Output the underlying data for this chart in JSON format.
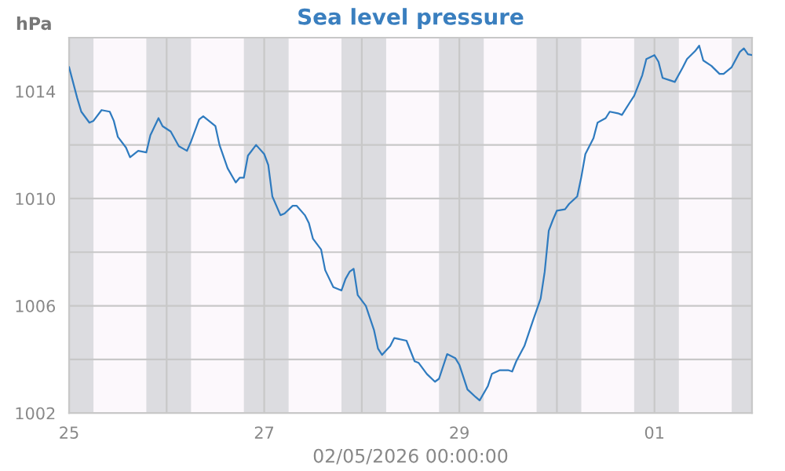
{
  "chart_data": {
    "type": "line",
    "title": "Sea level pressure",
    "ylabel": "hPa",
    "xlabel": "02/05/2026 00:00:00",
    "x": [
      "2026-04-25T00:00",
      "2026-04-25T02:00",
      "2026-04-25T03:00",
      "2026-04-25T05:00",
      "2026-04-25T06:00",
      "2026-04-25T08:00",
      "2026-04-25T10:00",
      "2026-04-25T11:00",
      "2026-04-25T12:00",
      "2026-04-25T14:00",
      "2026-04-25T15:00",
      "2026-04-25T17:00",
      "2026-04-25T19:00",
      "2026-04-25T20:00",
      "2026-04-25T22:00",
      "2026-04-25T23:00",
      "2026-04-26T01:00",
      "2026-04-26T03:00",
      "2026-04-26T05:00",
      "2026-04-26T06:00",
      "2026-04-26T08:00",
      "2026-04-26T09:00",
      "2026-04-26T12:00",
      "2026-04-26T13:00",
      "2026-04-26T15:00",
      "2026-04-26T17:00",
      "2026-04-26T18:00",
      "2026-04-26T19:00",
      "2026-04-26T20:00",
      "2026-04-26T22:00",
      "2026-04-27T00:00",
      "2026-04-27T01:00",
      "2026-04-27T02:00",
      "2026-04-27T04:00",
      "2026-04-27T05:00",
      "2026-04-27T07:00",
      "2026-04-27T08:00",
      "2026-04-27T10:00",
      "2026-04-27T11:00",
      "2026-04-27T12:00",
      "2026-04-27T14:00",
      "2026-04-27T15:00",
      "2026-04-27T17:00",
      "2026-04-27T19:00",
      "2026-04-27T20:00",
      "2026-04-27T21:00",
      "2026-04-27T22:00",
      "2026-04-27T23:00",
      "2026-04-28T01:00",
      "2026-04-28T03:00",
      "2026-04-28T04:00",
      "2026-04-28T05:00",
      "2026-04-28T07:00",
      "2026-04-28T08:00",
      "2026-04-28T11:00",
      "2026-04-28T13:00",
      "2026-04-28T14:00",
      "2026-04-28T16:00",
      "2026-04-28T18:00",
      "2026-04-28T19:00",
      "2026-04-28T21:00",
      "2026-04-28T23:00",
      "2026-04-29T00:00",
      "2026-04-29T02:00",
      "2026-04-29T04:00",
      "2026-04-29T05:00",
      "2026-04-29T07:00",
      "2026-04-29T08:00",
      "2026-04-29T10:00",
      "2026-04-29T12:00",
      "2026-04-29T13:00",
      "2026-04-29T14:00",
      "2026-04-29T16:00",
      "2026-04-29T18:00",
      "2026-04-29T20:00",
      "2026-04-29T21:00",
      "2026-04-29T22:00",
      "2026-04-29T23:00",
      "2026-04-30T00:00",
      "2026-04-30T02:00",
      "2026-04-30T03:00",
      "2026-04-30T05:00",
      "2026-04-30T06:00",
      "2026-04-30T07:00",
      "2026-04-30T09:00",
      "2026-04-30T10:00",
      "2026-04-30T12:00",
      "2026-04-30T13:00",
      "2026-04-30T15:00",
      "2026-04-30T16:00",
      "2026-04-30T18:00",
      "2026-04-30T19:00",
      "2026-04-30T21:00",
      "2026-04-30T22:00",
      "2026-05-01T00:00",
      "2026-05-01T01:00",
      "2026-05-01T02:00",
      "2026-05-01T04:00",
      "2026-05-01T05:00",
      "2026-05-01T07:00",
      "2026-05-01T08:00",
      "2026-05-01T10:00",
      "2026-05-01T11:00",
      "2026-05-01T12:00",
      "2026-05-01T14:00",
      "2026-05-01T16:00",
      "2026-05-01T17:00",
      "2026-05-01T19:00",
      "2026-05-01T21:00",
      "2026-05-01T22:00",
      "2026-05-01T23:00",
      "2026-05-02T00:00"
    ],
    "series": [
      {
        "color": "#2f7bbf",
        "values": [
          1014.9,
          1013.75,
          1013.24,
          1012.83,
          1012.9,
          1013.3,
          1013.24,
          1012.9,
          1012.3,
          1011.9,
          1011.54,
          1011.78,
          1011.72,
          1012.36,
          1013.0,
          1012.7,
          1012.5,
          1011.95,
          1011.78,
          1012.13,
          1012.95,
          1013.07,
          1012.7,
          1012.0,
          1011.13,
          1010.6,
          1010.78,
          1010.78,
          1011.6,
          1012.0,
          1011.66,
          1011.25,
          1010.08,
          1009.38,
          1009.44,
          1009.73,
          1009.73,
          1009.38,
          1009.08,
          1008.5,
          1008.1,
          1007.33,
          1006.7,
          1006.57,
          1007.0,
          1007.27,
          1007.38,
          1006.4,
          1006.0,
          1005.1,
          1004.4,
          1004.17,
          1004.5,
          1004.8,
          1004.7,
          1003.93,
          1003.87,
          1003.46,
          1003.17,
          1003.28,
          1004.2,
          1004.05,
          1003.8,
          1002.88,
          1002.6,
          1002.47,
          1003.0,
          1003.46,
          1003.6,
          1003.6,
          1003.55,
          1003.93,
          1004.5,
          1005.4,
          1006.27,
          1007.27,
          1008.8,
          1009.2,
          1009.55,
          1009.6,
          1009.8,
          1010.08,
          1010.8,
          1011.66,
          1012.25,
          1012.83,
          1013.0,
          1013.24,
          1013.18,
          1013.12,
          1013.6,
          1013.83,
          1014.6,
          1015.2,
          1015.35,
          1015.1,
          1014.5,
          1014.4,
          1014.35,
          1014.9,
          1015.2,
          1015.5,
          1015.7,
          1015.15,
          1014.95,
          1014.65,
          1014.65,
          1014.9,
          1015.47,
          1015.6,
          1015.38,
          1015.35
        ]
      }
    ],
    "xlim": [
      "2026-04-25T00:00",
      "2026-05-02T00:00"
    ],
    "xticks": [
      {
        "value": "2026-04-25",
        "label": "25"
      },
      {
        "value": "2026-04-26",
        "label": null
      },
      {
        "value": "2026-04-27",
        "label": "27"
      },
      {
        "value": "2026-04-28",
        "label": null
      },
      {
        "value": "2026-04-29",
        "label": "29"
      },
      {
        "value": "2026-04-30",
        "label": null
      },
      {
        "value": "2026-05-01",
        "label": "01"
      },
      {
        "value": "2026-05-02",
        "label": null
      }
    ],
    "ylim": [
      1002,
      1016
    ],
    "yticks": [
      1002,
      {
        "value": 1004,
        "label": null
      },
      1006,
      {
        "value": 1008,
        "label": null
      },
      1010,
      {
        "value": 1012,
        "label": null
      },
      1014,
      {
        "value": 1016,
        "label": null
      }
    ],
    "grid": true,
    "marker": "none",
    "line_style": "solid",
    "bands": [
      {
        "axis": "x",
        "from": "2026-04-25T00:00",
        "to": "2026-04-25T06:00",
        "color": "#dcdce0"
      },
      {
        "axis": "x",
        "from": "2026-04-25T19:00",
        "to": "2026-04-26T06:00",
        "color": "#dcdce0"
      },
      {
        "axis": "x",
        "from": "2026-04-26T19:00",
        "to": "2026-04-27T06:00",
        "color": "#dcdce0"
      },
      {
        "axis": "x",
        "from": "2026-04-27T19:00",
        "to": "2026-04-28T06:00",
        "color": "#dcdce0"
      },
      {
        "axis": "x",
        "from": "2026-04-28T19:00",
        "to": "2026-04-29T06:00",
        "color": "#dcdce0"
      },
      {
        "axis": "x",
        "from": "2026-04-29T19:00",
        "to": "2026-04-30T06:00",
        "color": "#dcdce0"
      },
      {
        "axis": "x",
        "from": "2026-04-30T19:00",
        "to": "2026-05-01T06:00",
        "color": "#dcdce0"
      },
      {
        "axis": "x",
        "from": "2026-05-01T19:00",
        "to": "2026-05-02T00:00",
        "color": "#dcdce0"
      }
    ]
  }
}
